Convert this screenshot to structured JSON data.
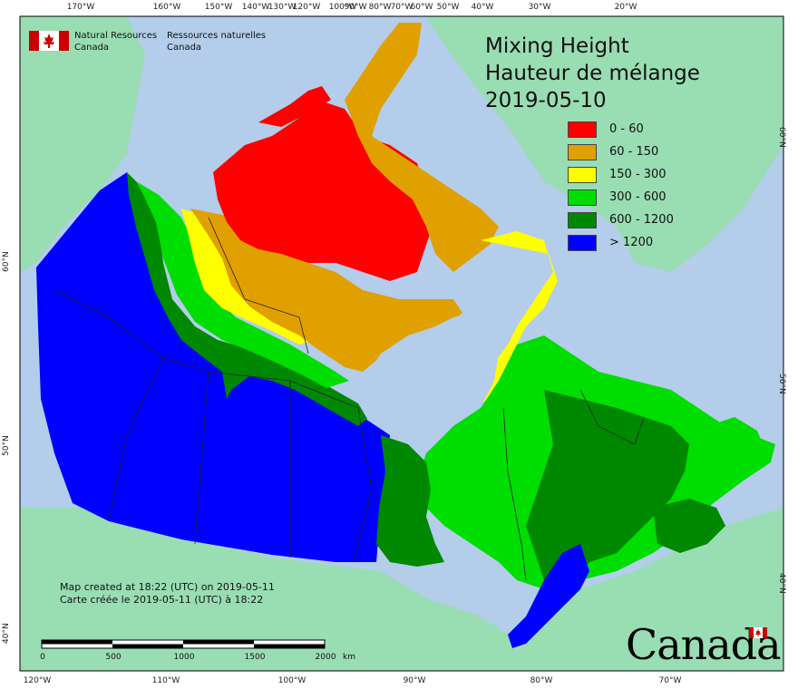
{
  "map": {
    "title": {
      "line1": "Mixing Height",
      "line2": "Hauteur de mélange",
      "date": "2019-05-10"
    },
    "legend": [
      {
        "label": "0 - 60",
        "color": "#ff0000"
      },
      {
        "label": "60 - 150",
        "color": "#e0a000"
      },
      {
        "label": "150 - 300",
        "color": "#ffff00"
      },
      {
        "label": "300 - 600",
        "color": "#00dd00"
      },
      {
        "label": "600 - 1200",
        "color": "#008800"
      },
      {
        "label": "> 1200",
        "color": "#0000ff"
      }
    ],
    "agency": {
      "en_line1": "Natural Resources",
      "en_line2": "Canada",
      "fr_line1": "Ressources naturelles",
      "fr_line2": "Canada"
    },
    "credit": {
      "en": "Map created at 18:22 (UTC) on 2019-05-11",
      "fr": "Carte créée le 2019-05-11 (UTC) à 18:22"
    },
    "scale": {
      "labels": [
        "0",
        "500",
        "1000",
        "1500",
        "2000"
      ],
      "unit": "km"
    },
    "wordmark": "Canada",
    "graticule": {
      "top": [
        "170°W",
        "160°W",
        "150°W",
        "140°W",
        "130°W",
        "120°W",
        "100°W",
        "90°W",
        "80°W",
        "70°W",
        "60°W",
        "50°W",
        "40°W",
        "30°W",
        "20°W"
      ],
      "bottom": [
        "120°W",
        "110°W",
        "100°W",
        "90°W",
        "80°W",
        "70°W"
      ],
      "left": [
        "60°N",
        "50°N",
        "40°N"
      ],
      "right": [
        "60°N",
        "50°N",
        "40°N"
      ]
    },
    "colors": {
      "ocean": "#b3cdea",
      "land_outside": "#99ddb3",
      "lakes": "#c8d7ea"
    }
  }
}
